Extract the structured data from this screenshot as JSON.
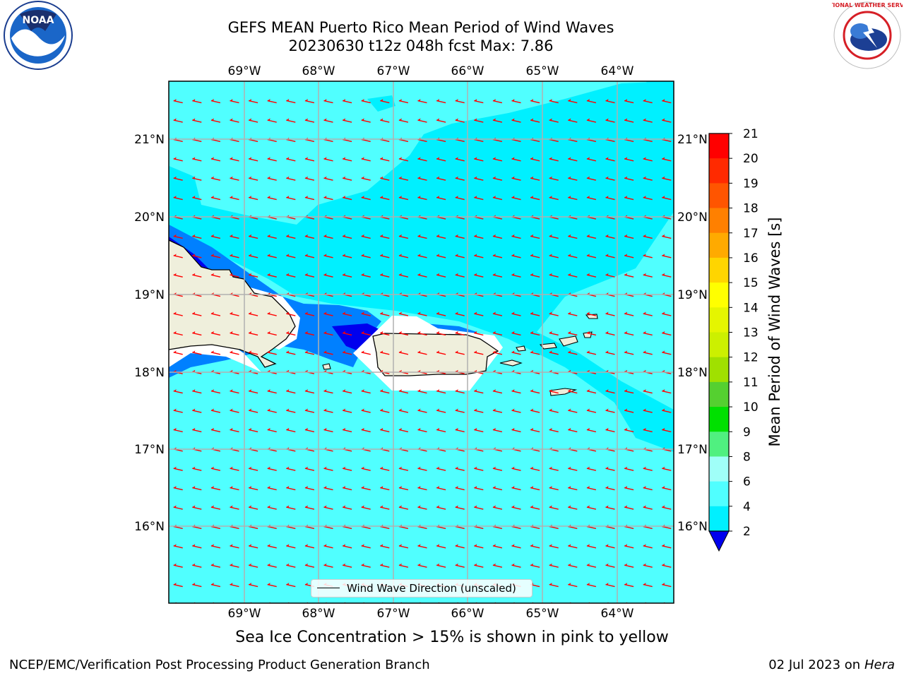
{
  "header": {
    "title_line1": "GEFS MEAN Puerto Rico Mean Period of Wind Waves",
    "title_line2": "20230630 t12z 048h fcst   Max: 7.86"
  },
  "logos": {
    "left": "NOAA",
    "right": "NATIONAL WEATHER SERVICE"
  },
  "map": {
    "lon_labels": [
      "69°W",
      "68°W",
      "67°W",
      "66°W",
      "65°W",
      "64°W"
    ],
    "lat_labels": [
      "21°N",
      "20°N",
      "19°N",
      "18°N",
      "17°N",
      "16°N"
    ],
    "legend_label": "Wind Wave Direction (unscaled)",
    "land_color": "#efefdc",
    "arrow_color": "#ff0000"
  },
  "colorbar": {
    "label": "Mean Period of Wind Waves [s]",
    "ticks": [
      "21",
      "20",
      "19",
      "18",
      "17",
      "16",
      "15",
      "14",
      "13",
      "12",
      "11",
      "10",
      "9",
      "8",
      "6",
      "4",
      "2"
    ],
    "colors": [
      "#ff0000",
      "#ff2a00",
      "#ff5500",
      "#ff8000",
      "#ffaa00",
      "#ffd500",
      "#ffff00",
      "#e5f500",
      "#ccf000",
      "#a0e000",
      "#55d030",
      "#00e000",
      "#50f080",
      "#a0fff8",
      "#50ffff",
      "#00f0ff",
      "#0080ff",
      "#0000ee"
    ]
  },
  "subtitle": "Sea Ice Concentration > 15% is shown in pink to yellow",
  "footer": {
    "left": "NCEP/EMC/Verification Post Processing Product Generation Branch",
    "right_date": "02 Jul 2023 on ",
    "right_machine": "Hera"
  }
}
